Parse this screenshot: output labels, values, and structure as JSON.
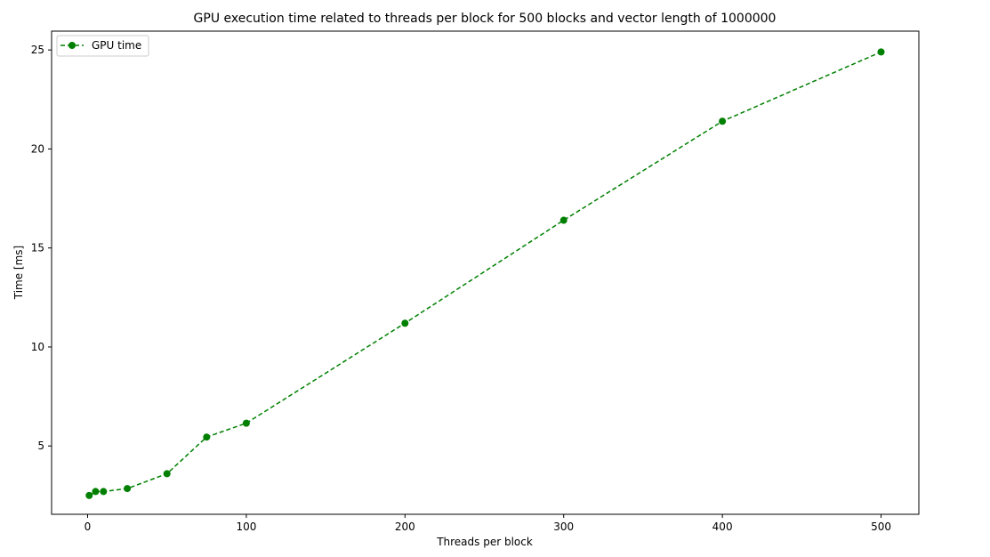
{
  "chart_data": {
    "type": "line",
    "title": "GPU execution time related to threads per block for 500 blocks and vector length of 1000000",
    "xlabel": "Threads per block",
    "ylabel": "Time [ms]",
    "xlim": [
      -22.7,
      523.8
    ],
    "ylim": [
      1.55,
      25.95
    ],
    "x_ticks": [
      0,
      100,
      200,
      300,
      400,
      500
    ],
    "x_tick_labels": [
      "0",
      "100",
      "200",
      "300",
      "400",
      "500"
    ],
    "y_ticks": [
      5,
      10,
      15,
      20,
      25
    ],
    "y_tick_labels": [
      "5",
      "10",
      "15",
      "20",
      "25"
    ],
    "grid": false,
    "legend_position": "upper-left",
    "series": [
      {
        "name": "GPU time",
        "color": "#008000",
        "line_style": "dashed",
        "marker": "circle",
        "x": [
          1,
          5,
          10,
          25,
          50,
          75,
          100,
          200,
          300,
          400,
          500
        ],
        "y": [
          2.5,
          2.7,
          2.7,
          2.85,
          3.6,
          5.45,
          6.15,
          11.2,
          16.4,
          21.4,
          24.9
        ]
      }
    ]
  }
}
